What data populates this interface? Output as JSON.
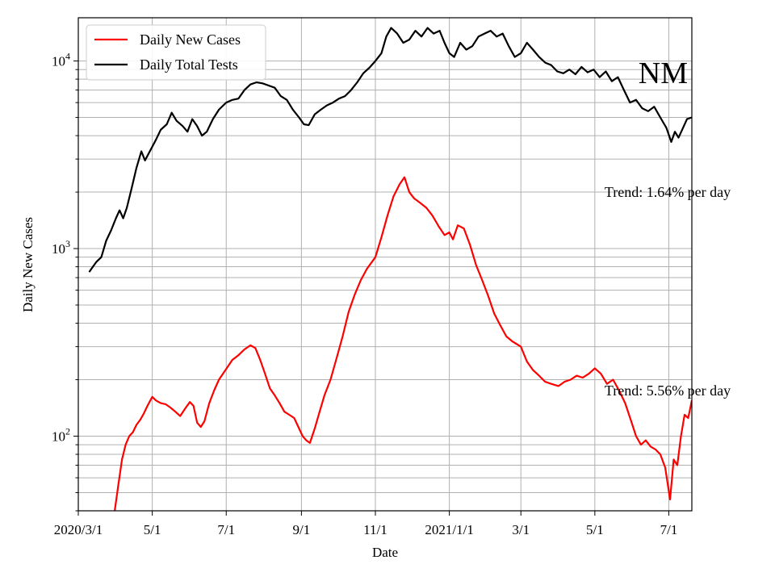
{
  "chart_data": {
    "type": "line",
    "xlabel": "Date",
    "ylabel": "Daily New Cases",
    "yscale": "log",
    "ylim": [
      40,
      17000
    ],
    "xlim": [
      "2020-03-01",
      "2021-07-20"
    ],
    "x_ticks": [
      {
        "date": "2020-03-01",
        "label": "2020/3/1"
      },
      {
        "date": "2020-05-01",
        "label": "5/1"
      },
      {
        "date": "2020-07-01",
        "label": "7/1"
      },
      {
        "date": "2020-09-01",
        "label": "9/1"
      },
      {
        "date": "2020-11-01",
        "label": "11/1"
      },
      {
        "date": "2021-01-01",
        "label": "2021/1/1"
      },
      {
        "date": "2021-03-01",
        "label": "3/1"
      },
      {
        "date": "2021-05-01",
        "label": "5/1"
      },
      {
        "date": "2021-07-01",
        "label": "7/1"
      }
    ],
    "y_ticks": [
      {
        "value": 100,
        "base": "10",
        "exp": "2"
      },
      {
        "value": 1000,
        "base": "10",
        "exp": "3"
      },
      {
        "value": 10000,
        "base": "10",
        "exp": "4"
      }
    ],
    "grid": true,
    "legend_position": "top-left",
    "state_label": "NM",
    "series": [
      {
        "name": "Daily New Cases",
        "color": "#ff0000",
        "points": [
          [
            "2020-03-31",
            40
          ],
          [
            "2020-04-03",
            55
          ],
          [
            "2020-04-06",
            75
          ],
          [
            "2020-04-09",
            90
          ],
          [
            "2020-04-12",
            100
          ],
          [
            "2020-04-15",
            105
          ],
          [
            "2020-04-18",
            115
          ],
          [
            "2020-04-21",
            122
          ],
          [
            "2020-04-24",
            132
          ],
          [
            "2020-04-27",
            145
          ],
          [
            "2020-05-01",
            162
          ],
          [
            "2020-05-04",
            155
          ],
          [
            "2020-05-08",
            150
          ],
          [
            "2020-05-12",
            148
          ],
          [
            "2020-05-16",
            142
          ],
          [
            "2020-05-20",
            135
          ],
          [
            "2020-05-24",
            128
          ],
          [
            "2020-05-28",
            140
          ],
          [
            "2020-06-01",
            152
          ],
          [
            "2020-06-04",
            145
          ],
          [
            "2020-06-07",
            118
          ],
          [
            "2020-06-10",
            112
          ],
          [
            "2020-06-13",
            120
          ],
          [
            "2020-06-17",
            150
          ],
          [
            "2020-06-21",
            175
          ],
          [
            "2020-06-25",
            200
          ],
          [
            "2020-07-01",
            228
          ],
          [
            "2020-07-06",
            255
          ],
          [
            "2020-07-11",
            270
          ],
          [
            "2020-07-16",
            290
          ],
          [
            "2020-07-21",
            305
          ],
          [
            "2020-07-25",
            295
          ],
          [
            "2020-07-29",
            255
          ],
          [
            "2020-08-02",
            215
          ],
          [
            "2020-08-06",
            180
          ],
          [
            "2020-08-10",
            165
          ],
          [
            "2020-08-14",
            150
          ],
          [
            "2020-08-18",
            135
          ],
          [
            "2020-08-22",
            130
          ],
          [
            "2020-08-26",
            125
          ],
          [
            "2020-08-30",
            110
          ],
          [
            "2020-09-02",
            100
          ],
          [
            "2020-09-05",
            95
          ],
          [
            "2020-09-08",
            92
          ],
          [
            "2020-09-12",
            110
          ],
          [
            "2020-09-16",
            135
          ],
          [
            "2020-09-20",
            165
          ],
          [
            "2020-09-25",
            200
          ],
          [
            "2020-09-30",
            260
          ],
          [
            "2020-10-05",
            340
          ],
          [
            "2020-10-10",
            460
          ],
          [
            "2020-10-15",
            570
          ],
          [
            "2020-10-20",
            680
          ],
          [
            "2020-10-25",
            780
          ],
          [
            "2020-11-01",
            900
          ],
          [
            "2020-11-06",
            1150
          ],
          [
            "2020-11-11",
            1500
          ],
          [
            "2020-11-16",
            1900
          ],
          [
            "2020-11-21",
            2200
          ],
          [
            "2020-11-25",
            2400
          ],
          [
            "2020-11-29",
            2000
          ],
          [
            "2020-12-03",
            1850
          ],
          [
            "2020-12-08",
            1750
          ],
          [
            "2020-12-13",
            1650
          ],
          [
            "2020-12-18",
            1500
          ],
          [
            "2020-12-23",
            1320
          ],
          [
            "2020-12-28",
            1180
          ],
          [
            "2021-01-01",
            1220
          ],
          [
            "2021-01-04",
            1120
          ],
          [
            "2021-01-08",
            1330
          ],
          [
            "2021-01-13",
            1280
          ],
          [
            "2021-01-18",
            1050
          ],
          [
            "2021-01-23",
            820
          ],
          [
            "2021-01-28",
            680
          ],
          [
            "2021-02-02",
            560
          ],
          [
            "2021-02-07",
            450
          ],
          [
            "2021-02-12",
            390
          ],
          [
            "2021-02-17",
            340
          ],
          [
            "2021-02-22",
            320
          ],
          [
            "2021-03-01",
            300
          ],
          [
            "2021-03-06",
            250
          ],
          [
            "2021-03-11",
            225
          ],
          [
            "2021-03-16",
            210
          ],
          [
            "2021-03-21",
            195
          ],
          [
            "2021-03-26",
            190
          ],
          [
            "2021-04-01",
            185
          ],
          [
            "2021-04-06",
            195
          ],
          [
            "2021-04-11",
            200
          ],
          [
            "2021-04-16",
            210
          ],
          [
            "2021-04-21",
            205
          ],
          [
            "2021-04-26",
            215
          ],
          [
            "2021-05-01",
            230
          ],
          [
            "2021-05-06",
            215
          ],
          [
            "2021-05-11",
            190
          ],
          [
            "2021-05-16",
            200
          ],
          [
            "2021-05-21",
            175
          ],
          [
            "2021-05-26",
            150
          ],
          [
            "2021-05-31",
            120
          ],
          [
            "2021-06-04",
            100
          ],
          [
            "2021-06-08",
            90
          ],
          [
            "2021-06-12",
            95
          ],
          [
            "2021-06-16",
            88
          ],
          [
            "2021-06-20",
            85
          ],
          [
            "2021-06-24",
            80
          ],
          [
            "2021-06-28",
            68
          ],
          [
            "2021-07-02",
            46
          ],
          [
            "2021-07-05",
            75
          ],
          [
            "2021-07-08",
            70
          ],
          [
            "2021-07-11",
            100
          ],
          [
            "2021-07-14",
            130
          ],
          [
            "2021-07-17",
            125
          ],
          [
            "2021-07-20",
            155
          ]
        ]
      },
      {
        "name": "Daily Total Tests",
        "color": "#000000",
        "points": [
          [
            "2020-03-10",
            750
          ],
          [
            "2020-03-13",
            800
          ],
          [
            "2020-03-16",
            850
          ],
          [
            "2020-03-20",
            900
          ],
          [
            "2020-03-24",
            1100
          ],
          [
            "2020-03-28",
            1250
          ],
          [
            "2020-04-01",
            1450
          ],
          [
            "2020-04-04",
            1600
          ],
          [
            "2020-04-07",
            1450
          ],
          [
            "2020-04-10",
            1650
          ],
          [
            "2020-04-14",
            2100
          ],
          [
            "2020-04-18",
            2700
          ],
          [
            "2020-04-22",
            3300
          ],
          [
            "2020-04-25",
            2950
          ],
          [
            "2020-04-29",
            3300
          ],
          [
            "2020-05-04",
            3800
          ],
          [
            "2020-05-08",
            4300
          ],
          [
            "2020-05-13",
            4600
          ],
          [
            "2020-05-17",
            5300
          ],
          [
            "2020-05-21",
            4800
          ],
          [
            "2020-05-26",
            4500
          ],
          [
            "2020-05-30",
            4200
          ],
          [
            "2020-06-03",
            4900
          ],
          [
            "2020-06-07",
            4500
          ],
          [
            "2020-06-11",
            4000
          ],
          [
            "2020-06-15",
            4200
          ],
          [
            "2020-06-20",
            4900
          ],
          [
            "2020-06-25",
            5500
          ],
          [
            "2020-07-01",
            6000
          ],
          [
            "2020-07-06",
            6200
          ],
          [
            "2020-07-11",
            6300
          ],
          [
            "2020-07-16",
            7000
          ],
          [
            "2020-07-21",
            7500
          ],
          [
            "2020-07-26",
            7700
          ],
          [
            "2020-07-31",
            7600
          ],
          [
            "2020-08-05",
            7400
          ],
          [
            "2020-08-10",
            7200
          ],
          [
            "2020-08-15",
            6500
          ],
          [
            "2020-08-20",
            6200
          ],
          [
            "2020-08-25",
            5500
          ],
          [
            "2020-08-30",
            5000
          ],
          [
            "2020-09-03",
            4600
          ],
          [
            "2020-09-07",
            4550
          ],
          [
            "2020-09-12",
            5200
          ],
          [
            "2020-09-17",
            5500
          ],
          [
            "2020-09-22",
            5800
          ],
          [
            "2020-09-27",
            6000
          ],
          [
            "2020-10-02",
            6300
          ],
          [
            "2020-10-07",
            6500
          ],
          [
            "2020-10-12",
            7000
          ],
          [
            "2020-10-17",
            7700
          ],
          [
            "2020-10-22",
            8600
          ],
          [
            "2020-10-27",
            9200
          ],
          [
            "2020-11-01",
            10000
          ],
          [
            "2020-11-06",
            11000
          ],
          [
            "2020-11-10",
            13500
          ],
          [
            "2020-11-14",
            15000
          ],
          [
            "2020-11-19",
            14000
          ],
          [
            "2020-11-24",
            12500
          ],
          [
            "2020-11-29",
            13000
          ],
          [
            "2020-12-04",
            14500
          ],
          [
            "2020-12-09",
            13500
          ],
          [
            "2020-12-14",
            15000
          ],
          [
            "2020-12-19",
            14000
          ],
          [
            "2020-12-24",
            14500
          ],
          [
            "2020-12-28",
            12500
          ],
          [
            "2021-01-01",
            11000
          ],
          [
            "2021-01-05",
            10500
          ],
          [
            "2021-01-10",
            12500
          ],
          [
            "2021-01-15",
            11500
          ],
          [
            "2021-01-20",
            12000
          ],
          [
            "2021-01-25",
            13500
          ],
          [
            "2021-01-30",
            14000
          ],
          [
            "2021-02-04",
            14500
          ],
          [
            "2021-02-09",
            13500
          ],
          [
            "2021-02-14",
            14000
          ],
          [
            "2021-02-19",
            12000
          ],
          [
            "2021-02-24",
            10500
          ],
          [
            "2021-03-01",
            11000
          ],
          [
            "2021-03-06",
            12500
          ],
          [
            "2021-03-11",
            11500
          ],
          [
            "2021-03-16",
            10500
          ],
          [
            "2021-03-21",
            9800
          ],
          [
            "2021-03-26",
            9500
          ],
          [
            "2021-03-31",
            8800
          ],
          [
            "2021-04-05",
            8600
          ],
          [
            "2021-04-10",
            9000
          ],
          [
            "2021-04-15",
            8500
          ],
          [
            "2021-04-20",
            9300
          ],
          [
            "2021-04-25",
            8700
          ],
          [
            "2021-04-30",
            9000
          ],
          [
            "2021-05-05",
            8200
          ],
          [
            "2021-05-10",
            8800
          ],
          [
            "2021-05-15",
            7800
          ],
          [
            "2021-05-20",
            8200
          ],
          [
            "2021-05-25",
            7000
          ],
          [
            "2021-05-30",
            6000
          ],
          [
            "2021-06-04",
            6200
          ],
          [
            "2021-06-09",
            5600
          ],
          [
            "2021-06-14",
            5400
          ],
          [
            "2021-06-19",
            5700
          ],
          [
            "2021-06-24",
            5000
          ],
          [
            "2021-06-29",
            4400
          ],
          [
            "2021-07-03",
            3700
          ],
          [
            "2021-07-06",
            4200
          ],
          [
            "2021-07-09",
            3900
          ],
          [
            "2021-07-12",
            4300
          ],
          [
            "2021-07-16",
            4900
          ],
          [
            "2021-07-20",
            5000
          ]
        ]
      }
    ],
    "annotations": [
      {
        "text": "Trend: 1.64% per day",
        "date": "2021-05-09",
        "value": 2000
      },
      {
        "text": "Trend: 5.56% per day",
        "date": "2021-05-09",
        "value": 175
      }
    ]
  }
}
